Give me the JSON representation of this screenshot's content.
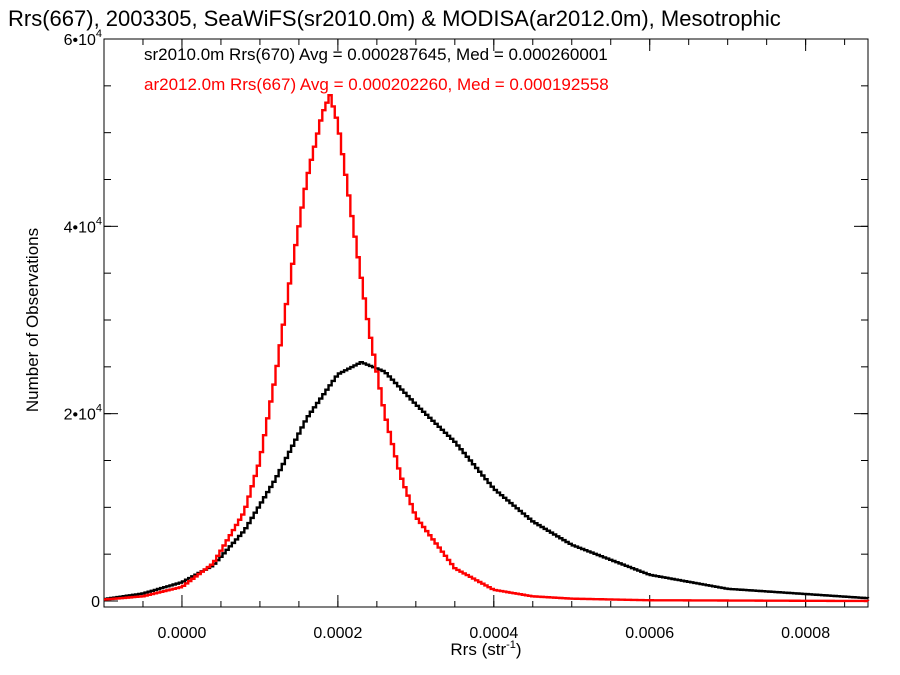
{
  "chart_data": {
    "type": "line",
    "title": "Rrs(667), 2003305, SeaWiFS(sr2010.0m) & MODISA(ar2012.0m), Mesotrophic",
    "xlabel": "Rrs (str",
    "xlabel_sup": "-1",
    "xlabel_end": ")",
    "ylabel": "Number of Observations",
    "xlim": [
      -0.0001,
      0.00088
    ],
    "ylim": [
      0,
      60000
    ],
    "x_ticks": [
      {
        "value": 0.0,
        "label": "0.0000"
      },
      {
        "value": 0.0002,
        "label": "0.0002"
      },
      {
        "value": 0.0004,
        "label": "0.0004"
      },
      {
        "value": 0.0006,
        "label": "0.0006"
      },
      {
        "value": 0.0008,
        "label": "0.0008"
      }
    ],
    "y_ticks": [
      {
        "value": 0,
        "mant": "0",
        "exp": ""
      },
      {
        "value": 20000,
        "mant": "2•10",
        "exp": "4"
      },
      {
        "value": 40000,
        "mant": "4•10",
        "exp": "4"
      },
      {
        "value": 60000,
        "mant": "6•10",
        "exp": "4"
      }
    ],
    "series": [
      {
        "name": "sr2010.0m Rrs(670) Avg = 0.000287645, Med = 0.000260001",
        "color": "#000000",
        "x": [
          -0.0001,
          -5e-05,
          0.0,
          4e-05,
          8e-05,
          0.00012,
          0.00016,
          0.0002,
          0.00023,
          0.00026,
          0.0003,
          0.00035,
          0.0004,
          0.00045,
          0.0005,
          0.0006,
          0.0007,
          0.00088
        ],
        "y": [
          200,
          800,
          2000,
          3800,
          7500,
          13000,
          19500,
          24200,
          25500,
          24500,
          21000,
          17000,
          12000,
          8500,
          6000,
          2800,
          1300,
          300
        ]
      },
      {
        "name": "ar2012.0m Rrs(667) Avg = 0.000202260, Med = 0.000192558",
        "color": "#ff0000",
        "x": [
          -0.0001,
          -5e-05,
          0.0,
          4e-05,
          8e-05,
          0.0001,
          0.00012,
          0.00014,
          0.00016,
          0.00018,
          0.00019,
          0.0002,
          0.00022,
          0.00024,
          0.00026,
          0.00028,
          0.0003,
          0.00035,
          0.0004,
          0.00045,
          0.0005,
          0.0006,
          0.00088
        ],
        "y": [
          150,
          500,
          1500,
          4000,
          9500,
          15000,
          24000,
          35000,
          45000,
          52000,
          54000,
          51000,
          40000,
          29000,
          20000,
          13500,
          9000,
          3500,
          1200,
          500,
          250,
          80,
          0
        ]
      }
    ]
  }
}
